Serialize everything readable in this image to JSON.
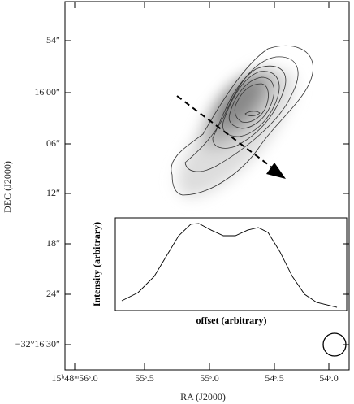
{
  "image_axes": {
    "x_label": "RA (J2000)",
    "y_label": "DEC (J2000)",
    "x_tick_labels": [
      "15ʰ48ᵐ56ˢ.0",
      "55ˢ.5",
      "55ˢ.0",
      "54ˢ.5",
      "54ˢ.0"
    ],
    "y_tick_labels": [
      "54″",
      "16′00″",
      "06″",
      "12″",
      "18″",
      "24″",
      "−32°16′30″"
    ]
  },
  "chart_data": {
    "type": "line",
    "x_label": "offset (arbitrary)",
    "y_label": "Intensity (arbitrary)",
    "xlim": [
      0,
      1
    ],
    "ylim": [
      0,
      1
    ],
    "color": "#000000",
    "x": [
      0.028,
      0.098,
      0.168,
      0.221,
      0.274,
      0.326,
      0.361,
      0.414,
      0.467,
      0.519,
      0.572,
      0.618,
      0.66,
      0.712,
      0.765,
      0.818,
      0.87,
      0.958
    ],
    "values": [
      0.105,
      0.193,
      0.368,
      0.588,
      0.807,
      0.93,
      0.939,
      0.868,
      0.807,
      0.807,
      0.868,
      0.895,
      0.842,
      0.632,
      0.368,
      0.175,
      0.088,
      0.035
    ]
  }
}
